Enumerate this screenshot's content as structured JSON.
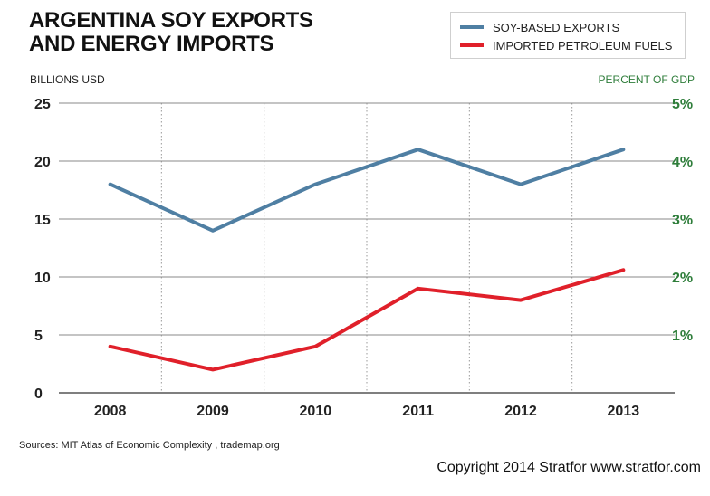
{
  "chart_data": {
    "type": "line",
    "title": [
      "ARGENTINA SOY EXPORTS",
      "AND ENERGY IMPORTS"
    ],
    "ylabel": "BILLIONS USD",
    "ylabel_right": "PERCENT OF GDP",
    "categories": [
      "2008",
      "2009",
      "2010",
      "2011",
      "2012",
      "2013"
    ],
    "ylim": [
      0,
      25
    ],
    "yticks": [
      0,
      5,
      10,
      15,
      20,
      25
    ],
    "right_ticks": [
      "1%",
      "2%",
      "3%",
      "4%",
      "5%"
    ],
    "right_tick_values": [
      5,
      10,
      15,
      20,
      25
    ],
    "grid": true,
    "legend_position": "top-right",
    "series": [
      {
        "name": "SOY-BASED EXPORTS",
        "color": "#4f7fa3",
        "values": [
          18,
          14,
          18,
          21,
          18,
          21
        ]
      },
      {
        "name": "IMPORTED PETROLEUM FUELS",
        "color": "#e0202a",
        "values": [
          4,
          2,
          4,
          9,
          8,
          10.6
        ]
      }
    ]
  },
  "footer": {
    "source": "Sources: MIT Atlas of Economic Complexity , trademap.org",
    "copyright": "Copyright 2014 Stratfor www.stratfor.com"
  }
}
